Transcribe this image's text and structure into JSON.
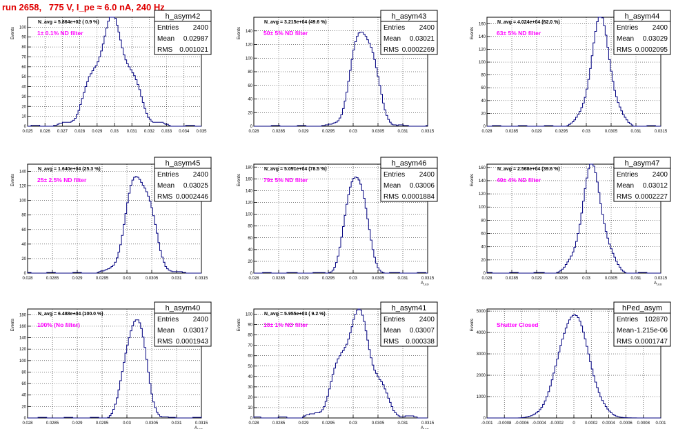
{
  "page": {
    "title": "run 2658,   775 V, I_pe ≈ 6.0 nA, 240 Hz"
  },
  "colors": {
    "histogram": "#00007f",
    "title": "#e00000",
    "annotation": "#ff00ff",
    "grid": "#000000"
  },
  "chart_data": [
    {
      "type": "histogram",
      "name": "h_asym42",
      "navg": "N_avg = 5.864e+02 ( 0.9 %)",
      "label": "1± 0.1% ND filter",
      "stats": {
        "Entries": "2400",
        "Mean": "0.02987",
        "RMS": "0.001021"
      },
      "xlabel": "",
      "ylabel": "Events",
      "xlim": [
        0.025,
        0.035
      ],
      "ylim": [
        0,
        110
      ],
      "xticks": [
        "0.025",
        "0.026",
        "0.027",
        "0.028",
        "0.029",
        "0.03",
        "0.031",
        "0.032",
        "0.033",
        "0.034",
        "0.035"
      ],
      "yticks": [
        "0",
        "10",
        "20",
        "30",
        "40",
        "50",
        "60",
        "70",
        "80",
        "90",
        "100"
      ],
      "mean": 0.02987,
      "sigma": 0.001021,
      "peak": 102
    },
    {
      "type": "histogram",
      "name": "h_asym43",
      "navg": "N_avg = 3.215e+04 (49.6 %)",
      "label": "50± 5% ND filter",
      "stats": {
        "Entries": "2400",
        "Mean": "0.03021",
        "RMS": "0.0002269"
      },
      "xlabel": "",
      "ylabel": "Events",
      "xlim": [
        0.028,
        0.0315
      ],
      "ylim": [
        0,
        160
      ],
      "xticks": [
        "0.028",
        "0.0285",
        "0.029",
        "0.0295",
        "0.03",
        "0.0305",
        "0.031",
        "0.0315"
      ],
      "yticks": [
        "0",
        "20",
        "40",
        "60",
        "80",
        "100",
        "120",
        "140"
      ],
      "mean": 0.03021,
      "sigma": 0.0002269,
      "peak": 148
    },
    {
      "type": "histogram",
      "name": "h_asym44",
      "navg": "N_avg = 4.024e+04 (62.0 %)",
      "label": "63± 5% ND filter",
      "stats": {
        "Entries": "2400",
        "Mean": "0.03029",
        "RMS": "0.0002095"
      },
      "xlabel": "",
      "ylabel": "Events",
      "xlim": [
        0.028,
        0.0315
      ],
      "ylim": [
        0,
        170
      ],
      "xticks": [
        "0.028",
        "0.0285",
        "0.029",
        "0.0295",
        "0.03",
        "0.0305",
        "0.031",
        "0.0315"
      ],
      "yticks": [
        "0",
        "20",
        "40",
        "60",
        "80",
        "100",
        "120",
        "140",
        "160"
      ],
      "mean": 0.03029,
      "sigma": 0.0002095,
      "peak": 160
    },
    {
      "type": "histogram",
      "name": "h_asym45",
      "navg": "N_avg = 1.640e+04 (25.3 %)",
      "label": "25± 2.5% ND filter",
      "stats": {
        "Entries": "2400",
        "Mean": "0.03025",
        "RMS": "0.0002446"
      },
      "xlabel": "",
      "ylabel": "Events",
      "xlim": [
        0.028,
        0.0315
      ],
      "ylim": [
        0,
        150
      ],
      "xticks": [
        "0.028",
        "0.0285",
        "0.029",
        "0.0295",
        "0.03",
        "0.0305",
        "0.031",
        "0.0315"
      ],
      "yticks": [
        "0",
        "20",
        "40",
        "60",
        "80",
        "100",
        "120",
        "140"
      ],
      "mean": 0.03025,
      "sigma": 0.0002446,
      "peak": 140
    },
    {
      "type": "histogram",
      "name": "h_asym46",
      "navg": "N_avg = 5.091e+04 (78.5 %)",
      "label": "79± 5% ND filter",
      "stats": {
        "Entries": "2400",
        "Mean": "0.03006",
        "RMS": "0.0001884"
      },
      "xlabel": "A",
      "xlabel_sub": "LED",
      "ylabel": "Events",
      "xlim": [
        0.028,
        0.0315
      ],
      "ylim": [
        0,
        185
      ],
      "xticks": [
        "0.028",
        "0.0285",
        "0.029",
        "0.0295",
        "0.03",
        "0.0305",
        "0.031",
        "0.0315"
      ],
      "yticks": [
        "0",
        "20",
        "40",
        "60",
        "80",
        "100",
        "120",
        "140",
        "160",
        "180"
      ],
      "mean": 0.03006,
      "sigma": 0.0001884,
      "peak": 178
    },
    {
      "type": "histogram",
      "name": "h_asym47",
      "navg": "N_avg = 2.568e+04 (39.6 %)",
      "label": "40± 4% ND filter",
      "stats": {
        "Entries": "2400",
        "Mean": "0.03012",
        "RMS": "0.0002227"
      },
      "xlabel": "A",
      "xlabel_sub": "LED",
      "ylabel": "Events",
      "xlim": [
        0.028,
        0.0315
      ],
      "ylim": [
        0,
        165
      ],
      "xticks": [
        "0.028",
        "0.0285",
        "0.029",
        "0.0295",
        "0.03",
        "0.0305",
        "0.031",
        "0.0315"
      ],
      "yticks": [
        "0",
        "20",
        "40",
        "60",
        "80",
        "100",
        "120",
        "140",
        "160"
      ],
      "mean": 0.03012,
      "sigma": 0.0002227,
      "peak": 154
    },
    {
      "type": "histogram",
      "name": "h_asym40",
      "navg": "N_avg = 6.488e+04 (100.0 %)",
      "label": "100% (No filter)",
      "stats": {
        "Entries": "2400",
        "Mean": "0.03017",
        "RMS": "0.0001943"
      },
      "xlabel": "A",
      "xlabel_sub": "LED",
      "ylabel": "Events",
      "xlim": [
        0.028,
        0.0315
      ],
      "ylim": [
        0,
        190
      ],
      "xticks": [
        "0.028",
        "0.0285",
        "0.029",
        "0.0295",
        "0.03",
        "0.0305",
        "0.031",
        "0.0315"
      ],
      "yticks": [
        "0",
        "20",
        "40",
        "60",
        "80",
        "100",
        "120",
        "140",
        "160",
        "180"
      ],
      "mean": 0.03017,
      "sigma": 0.0001943,
      "peak": 182
    },
    {
      "type": "histogram",
      "name": "h_asym41",
      "navg": "N_avg = 5.955e+03 ( 9.2 %)",
      "label": "10± 1% ND filter",
      "stats": {
        "Entries": "2400",
        "Mean": "0.03007",
        "RMS": "0.000338"
      },
      "xlabel": "A",
      "xlabel_sub": "LED",
      "ylabel": "Events",
      "xlim": [
        0.028,
        0.0315
      ],
      "ylim": [
        0,
        105
      ],
      "xticks": [
        "0.028",
        "0.0285",
        "0.029",
        "0.0295",
        "0.03",
        "0.0305",
        "0.031",
        "0.0315"
      ],
      "yticks": [
        "0",
        "10",
        "20",
        "30",
        "40",
        "50",
        "60",
        "70",
        "80",
        "90",
        "100"
      ],
      "mean": 0.03007,
      "sigma": 0.000338,
      "peak": 96
    },
    {
      "type": "histogram",
      "name": "hPed_asym",
      "navg": "",
      "label": "Shutter Closed",
      "stats": {
        "Entries": "102870",
        "Mean": "-1.215e-06",
        "RMS": "0.0001747"
      },
      "xlabel": "",
      "ylabel": "Events",
      "xlim": [
        -0.001,
        0.001
      ],
      "ylim": [
        0,
        5100
      ],
      "xticks": [
        "-0.001",
        "-0.0008",
        "-0.0006",
        "-0.0004",
        "-0.0002",
        "0",
        "0.0002",
        "0.0004",
        "0.0006",
        "0.0008",
        "0.001"
      ],
      "yticks": [
        "0",
        "1000",
        "2000",
        "3000",
        "4000",
        "5000"
      ],
      "mean": -1.215e-06,
      "sigma": 0.0001747,
      "peak": 4850
    }
  ]
}
